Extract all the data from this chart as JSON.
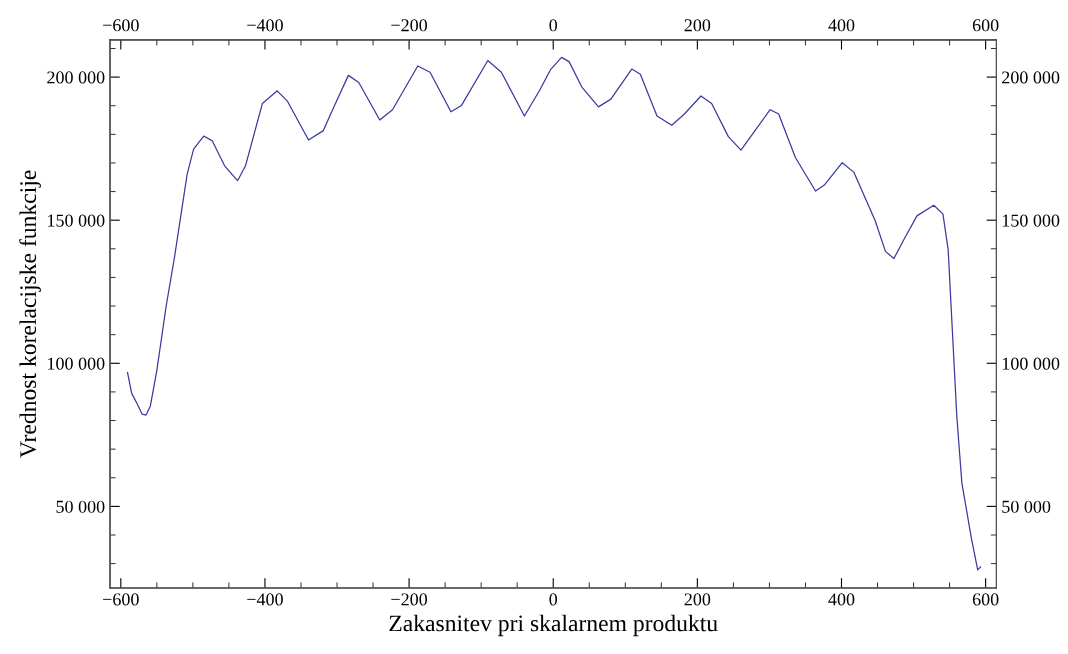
{
  "chart_data": {
    "type": "line",
    "xlabel": "Zakasnitev pri skalarnem produktu",
    "ylabel": "Vrednost korelacijske funkcije",
    "xlim": [
      -615,
      615
    ],
    "ylim": [
      21500,
      213000
    ],
    "xticks": [
      {
        "value": -600,
        "label": "−600"
      },
      {
        "value": -400,
        "label": "−400"
      },
      {
        "value": -200,
        "label": "−200"
      },
      0,
      200,
      400,
      600
    ],
    "x2lim": [
      -615,
      615
    ],
    "x2ticks": [
      {
        "value": -600,
        "label": "−600"
      },
      {
        "value": -400,
        "label": "−400"
      },
      {
        "value": -200,
        "label": "−200"
      },
      0,
      200,
      400,
      600
    ],
    "yticks": [
      {
        "value": 50000,
        "label": "50 000"
      },
      {
        "value": 100000,
        "label": "100 000"
      },
      {
        "value": 150000,
        "label": "150 000"
      },
      {
        "value": 200000,
        "label": "200 000"
      }
    ],
    "y2lim": [
      21500,
      213000
    ],
    "y2ticks": [
      {
        "value": 50000,
        "label": "50 000"
      },
      {
        "value": 100000,
        "label": "100 000"
      },
      {
        "value": 150000,
        "label": "150 000"
      },
      {
        "value": 200000,
        "label": "200 000"
      }
    ],
    "grid": false,
    "legend": false,
    "marker": "none",
    "line_style": "solid",
    "series": [
      {
        "color": "#3a3aa0",
        "x": [
          -590.7,
          -584.9,
          -577.9,
          -570.3,
          -565,
          -559,
          -550,
          -537,
          -525.6,
          -508,
          -499,
          -485,
          -473,
          -456,
          -438,
          -427,
          -403.5,
          -383,
          -368.6,
          -339.5,
          -319,
          -304.7,
          -284.3,
          -269.8,
          -240.7,
          -223,
          -188,
          -170.9,
          -141.9,
          -127.3,
          -90.7,
          -72,
          -40,
          -18.6,
          -4,
          11.6,
          22,
          39.5,
          62.8,
          80,
          109,
          120.9,
          144,
          164.5,
          182,
          205,
          219.8,
          243,
          260.5,
          278,
          301,
          312.8,
          336,
          364,
          376.7,
          401,
          417,
          446.5,
          461,
          472.7,
          487,
          504.7,
          528,
          540.7,
          548,
          554,
          560,
          567,
          580,
          589,
          593
        ],
        "values": [
          96800,
          89500,
          86150,
          82200,
          81900,
          85100,
          97500,
          120100,
          136900,
          166000,
          174800,
          179400,
          177700,
          169000,
          163800,
          169000,
          190800,
          195200,
          191500,
          178000,
          181300,
          189400,
          200600,
          198100,
          185000,
          188600,
          203900,
          201700,
          187900,
          190100,
          205800,
          201700,
          186400,
          195500,
          202500,
          206900,
          205400,
          196600,
          189600,
          192300,
          202800,
          201000,
          186400,
          183200,
          187100,
          193400,
          190800,
          179200,
          174500,
          180600,
          188600,
          187100,
          171900,
          160200,
          162400,
          170100,
          166800,
          150000,
          139100,
          136600,
          143400,
          151500,
          155200,
          152200,
          139800,
          110600,
          81500,
          58200,
          39200,
          27800,
          28900
        ]
      }
    ]
  }
}
